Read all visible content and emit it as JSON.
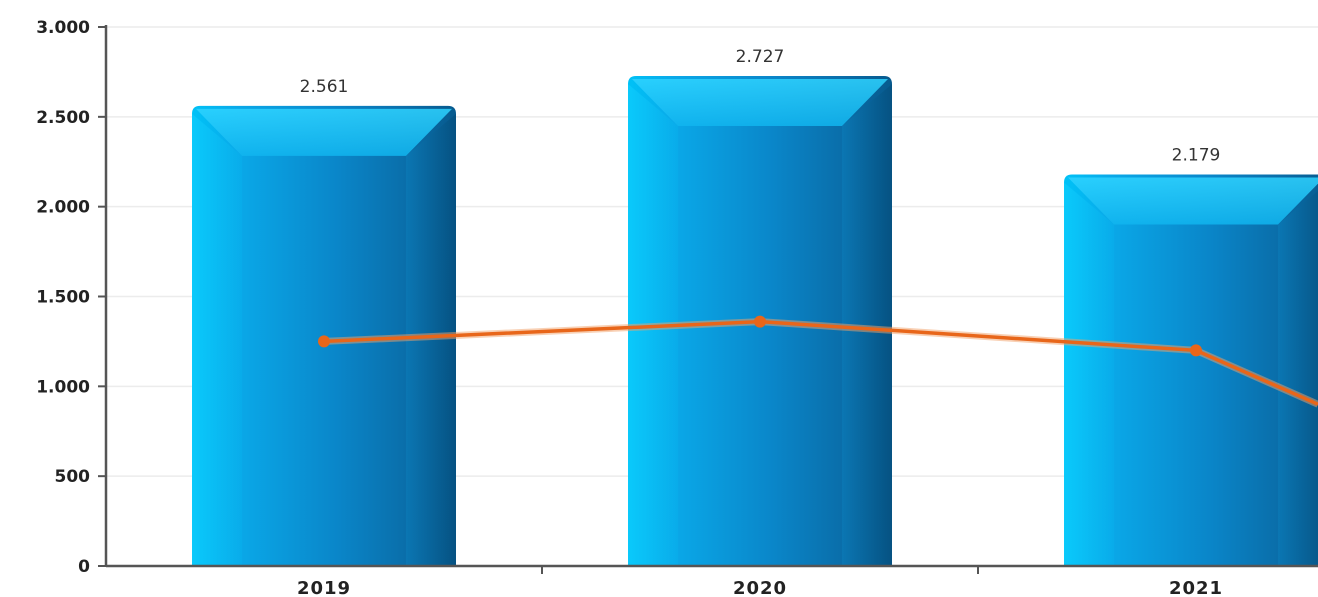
{
  "chart_data": {
    "type": "bar",
    "categories": [
      "2019",
      "2020",
      "2021"
    ],
    "series": [
      {
        "type": "bar",
        "values": [
          2561,
          2727,
          2179
        ],
        "labels": [
          "2.561",
          "2.727",
          "2.179"
        ],
        "color": "#1aa9e6"
      },
      {
        "type": "line",
        "values": [
          1250,
          1360,
          1200
        ],
        "tail_value": 900,
        "color": "#e8661a"
      }
    ],
    "ylim": [
      0,
      3000
    ],
    "yticks": [
      0,
      500,
      1000,
      1500,
      2000,
      2500,
      3000
    ],
    "ytick_labels": [
      "0",
      "500",
      "1.000",
      "1.500",
      "2.000",
      "2.500",
      "3.000"
    ],
    "title": "",
    "xlabel": "",
    "ylabel": "",
    "grid": true,
    "legend": "none"
  }
}
